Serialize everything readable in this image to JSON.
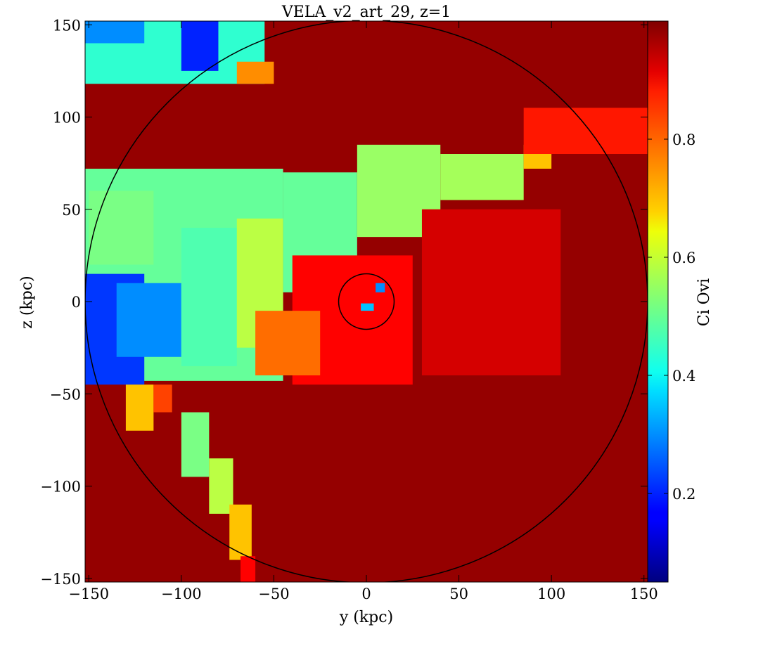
{
  "chart_data": {
    "type": "heatmap",
    "title": "VELA_v2_art_29, z=1",
    "xlabel": "y  (kpc)",
    "ylabel": "z  (kpc)",
    "colorbar_label": "Ci Ovi",
    "colormap": "jet",
    "xlim": [
      -152,
      152
    ],
    "ylim": [
      -152,
      152
    ],
    "clim": [
      0.05,
      1.0
    ],
    "x_ticks": [
      -150,
      -100,
      -50,
      0,
      50,
      100,
      150
    ],
    "y_ticks": [
      -150,
      -100,
      -50,
      0,
      50,
      100,
      150
    ],
    "x_tick_labels": [
      "−150",
      "−100",
      "−50",
      "0",
      "50",
      "100",
      "150"
    ],
    "y_tick_labels": [
      "−150",
      "−100",
      "−50",
      "0",
      "50",
      "100",
      "150"
    ],
    "colorbar_ticks": [
      0.2,
      0.4,
      0.6,
      0.8
    ],
    "colorbar_tick_labels": [
      "0.2",
      "0.4",
      "0.6",
      "0.8"
    ],
    "background_value": 0.98,
    "regions": [
      {
        "kind": "rect",
        "x0": -152,
        "x1": -45,
        "y0": -43,
        "y1": 72,
        "value": 0.5
      },
      {
        "kind": "rect",
        "x0": -152,
        "x1": -120,
        "y0": -45,
        "y1": 15,
        "value": 0.22
      },
      {
        "kind": "rect",
        "x0": -135,
        "x1": -100,
        "y0": -30,
        "y1": 10,
        "value": 0.3
      },
      {
        "kind": "rect",
        "x0": -150,
        "x1": -115,
        "y0": 20,
        "y1": 60,
        "value": 0.52
      },
      {
        "kind": "rect",
        "x0": -100,
        "x1": -70,
        "y0": -35,
        "y1": 40,
        "value": 0.48
      },
      {
        "kind": "rect",
        "x0": -70,
        "x1": -45,
        "y0": -25,
        "y1": 45,
        "value": 0.58
      },
      {
        "kind": "rect",
        "x0": -45,
        "x1": -5,
        "y0": 5,
        "y1": 70,
        "value": 0.5
      },
      {
        "kind": "rect",
        "x0": -5,
        "x1": 40,
        "y0": 35,
        "y1": 85,
        "value": 0.55
      },
      {
        "kind": "rect",
        "x0": 40,
        "x1": 85,
        "y0": 55,
        "y1": 80,
        "value": 0.56
      },
      {
        "kind": "rect",
        "x0": 85,
        "x1": 100,
        "y0": 72,
        "y1": 85,
        "value": 0.7
      },
      {
        "kind": "rect",
        "x0": -40,
        "x1": 25,
        "y0": -45,
        "y1": 25,
        "value": 0.88
      },
      {
        "kind": "rect",
        "x0": -60,
        "x1": -25,
        "y0": -40,
        "y1": -5,
        "value": 0.78
      },
      {
        "kind": "rect",
        "x0": -152,
        "x1": -55,
        "y0": 118,
        "y1": 152,
        "value": 0.45
      },
      {
        "kind": "rect",
        "x0": -100,
        "x1": -80,
        "y0": 125,
        "y1": 152,
        "value": 0.2
      },
      {
        "kind": "rect",
        "x0": -152,
        "x1": -120,
        "y0": 140,
        "y1": 152,
        "value": 0.3
      },
      {
        "kind": "rect",
        "x0": -70,
        "x1": -50,
        "y0": 118,
        "y1": 130,
        "value": 0.75
      },
      {
        "kind": "rect",
        "x0": -130,
        "x1": -115,
        "y0": -70,
        "y1": -45,
        "value": 0.7
      },
      {
        "kind": "rect",
        "x0": -115,
        "x1": -105,
        "y0": -60,
        "y1": -45,
        "value": 0.82
      },
      {
        "kind": "rect",
        "x0": -100,
        "x1": -85,
        "y0": -95,
        "y1": -60,
        "value": 0.52
      },
      {
        "kind": "rect",
        "x0": -85,
        "x1": -72,
        "y0": -115,
        "y1": -85,
        "value": 0.58
      },
      {
        "kind": "rect",
        "x0": -74,
        "x1": -62,
        "y0": -140,
        "y1": -110,
        "value": 0.7
      },
      {
        "kind": "rect",
        "x0": -68,
        "x1": -60,
        "y0": -152,
        "y1": -138,
        "value": 0.88
      },
      {
        "kind": "rect",
        "x0": 85,
        "x1": 152,
        "y0": 80,
        "y1": 105,
        "value": 0.86
      },
      {
        "kind": "rect",
        "x0": 30,
        "x1": 105,
        "y0": -40,
        "y1": 50,
        "value": 0.92
      },
      {
        "kind": "rect",
        "x0": 5,
        "x1": 10,
        "y0": 5,
        "y1": 10,
        "value": 0.3
      },
      {
        "kind": "rect",
        "x0": -3,
        "x1": 4,
        "y0": -5,
        "y1": -1,
        "value": 0.35
      }
    ],
    "circles": [
      {
        "cx": 0,
        "cy": 0,
        "r": 152
      },
      {
        "cx": 0,
        "cy": 0,
        "r": 15
      }
    ]
  }
}
